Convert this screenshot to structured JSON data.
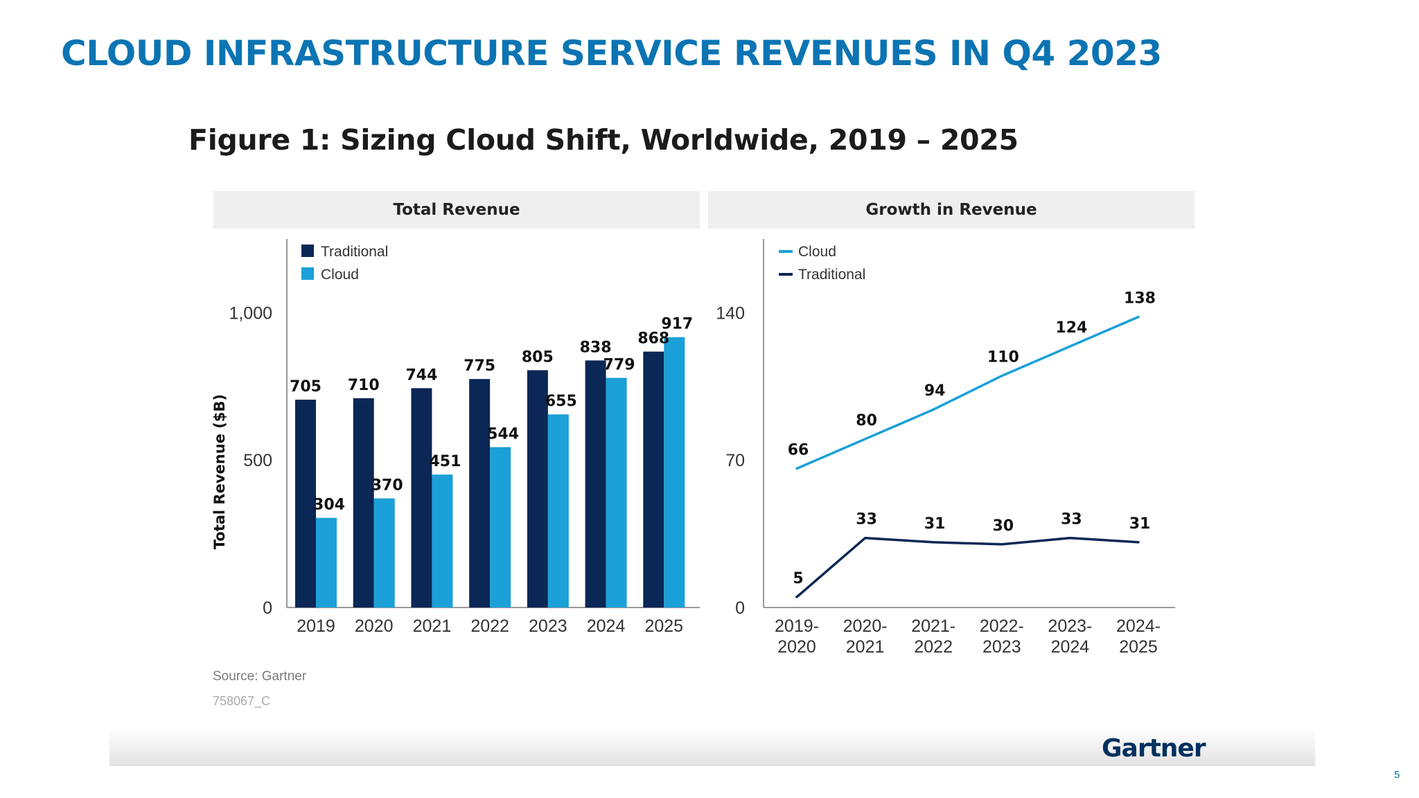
{
  "slide": {
    "title": "CLOUD INFRASTRUCTURE SERVICE REVENUES IN Q4 2023",
    "page_number": "5"
  },
  "figure": {
    "title": "Figure 1: Sizing Cloud Shift, Worldwide, 2019 – 2025",
    "source": "Source: Gartner",
    "code": "758067_C",
    "brand": "Gartner",
    "colors": {
      "traditional": "#0b2755",
      "cloud": "#1ba0d7",
      "title": "#0c74b3"
    }
  },
  "chart_data": [
    {
      "type": "bar",
      "title": "Total Revenue",
      "xlabel": "",
      "ylabel": "Total Revenue ($B)",
      "ylim": [
        0,
        1250
      ],
      "yticks": [
        "0",
        "500",
        "1,000"
      ],
      "ytick_values": [
        0,
        500,
        1000
      ],
      "categories": [
        "2019",
        "2020",
        "2021",
        "2022",
        "2023",
        "2024",
        "2025"
      ],
      "legend_position": "top-left",
      "series": [
        {
          "name": "Traditional",
          "values": [
            705,
            710,
            744,
            775,
            805,
            838,
            868
          ]
        },
        {
          "name": "Cloud",
          "values": [
            304,
            370,
            451,
            544,
            655,
            779,
            917
          ]
        }
      ]
    },
    {
      "type": "line",
      "title": "Growth in Revenue",
      "xlabel": "",
      "ylabel": "",
      "ylim": [
        0,
        175
      ],
      "yticks": [
        "0",
        "70",
        "140"
      ],
      "ytick_values": [
        0,
        70,
        140
      ],
      "categories": [
        [
          "2019-",
          "2020"
        ],
        [
          "2020-",
          "2021"
        ],
        [
          "2021-",
          "2022"
        ],
        [
          "2022-",
          "2023"
        ],
        [
          "2023-",
          "2024"
        ],
        [
          "2024-",
          "2025"
        ]
      ],
      "legend_position": "top-left",
      "series": [
        {
          "name": "Cloud",
          "values": [
            66,
            80,
            94,
            110,
            124,
            138
          ]
        },
        {
          "name": "Traditional",
          "values": [
            5,
            33,
            31,
            30,
            33,
            31
          ]
        }
      ]
    }
  ]
}
